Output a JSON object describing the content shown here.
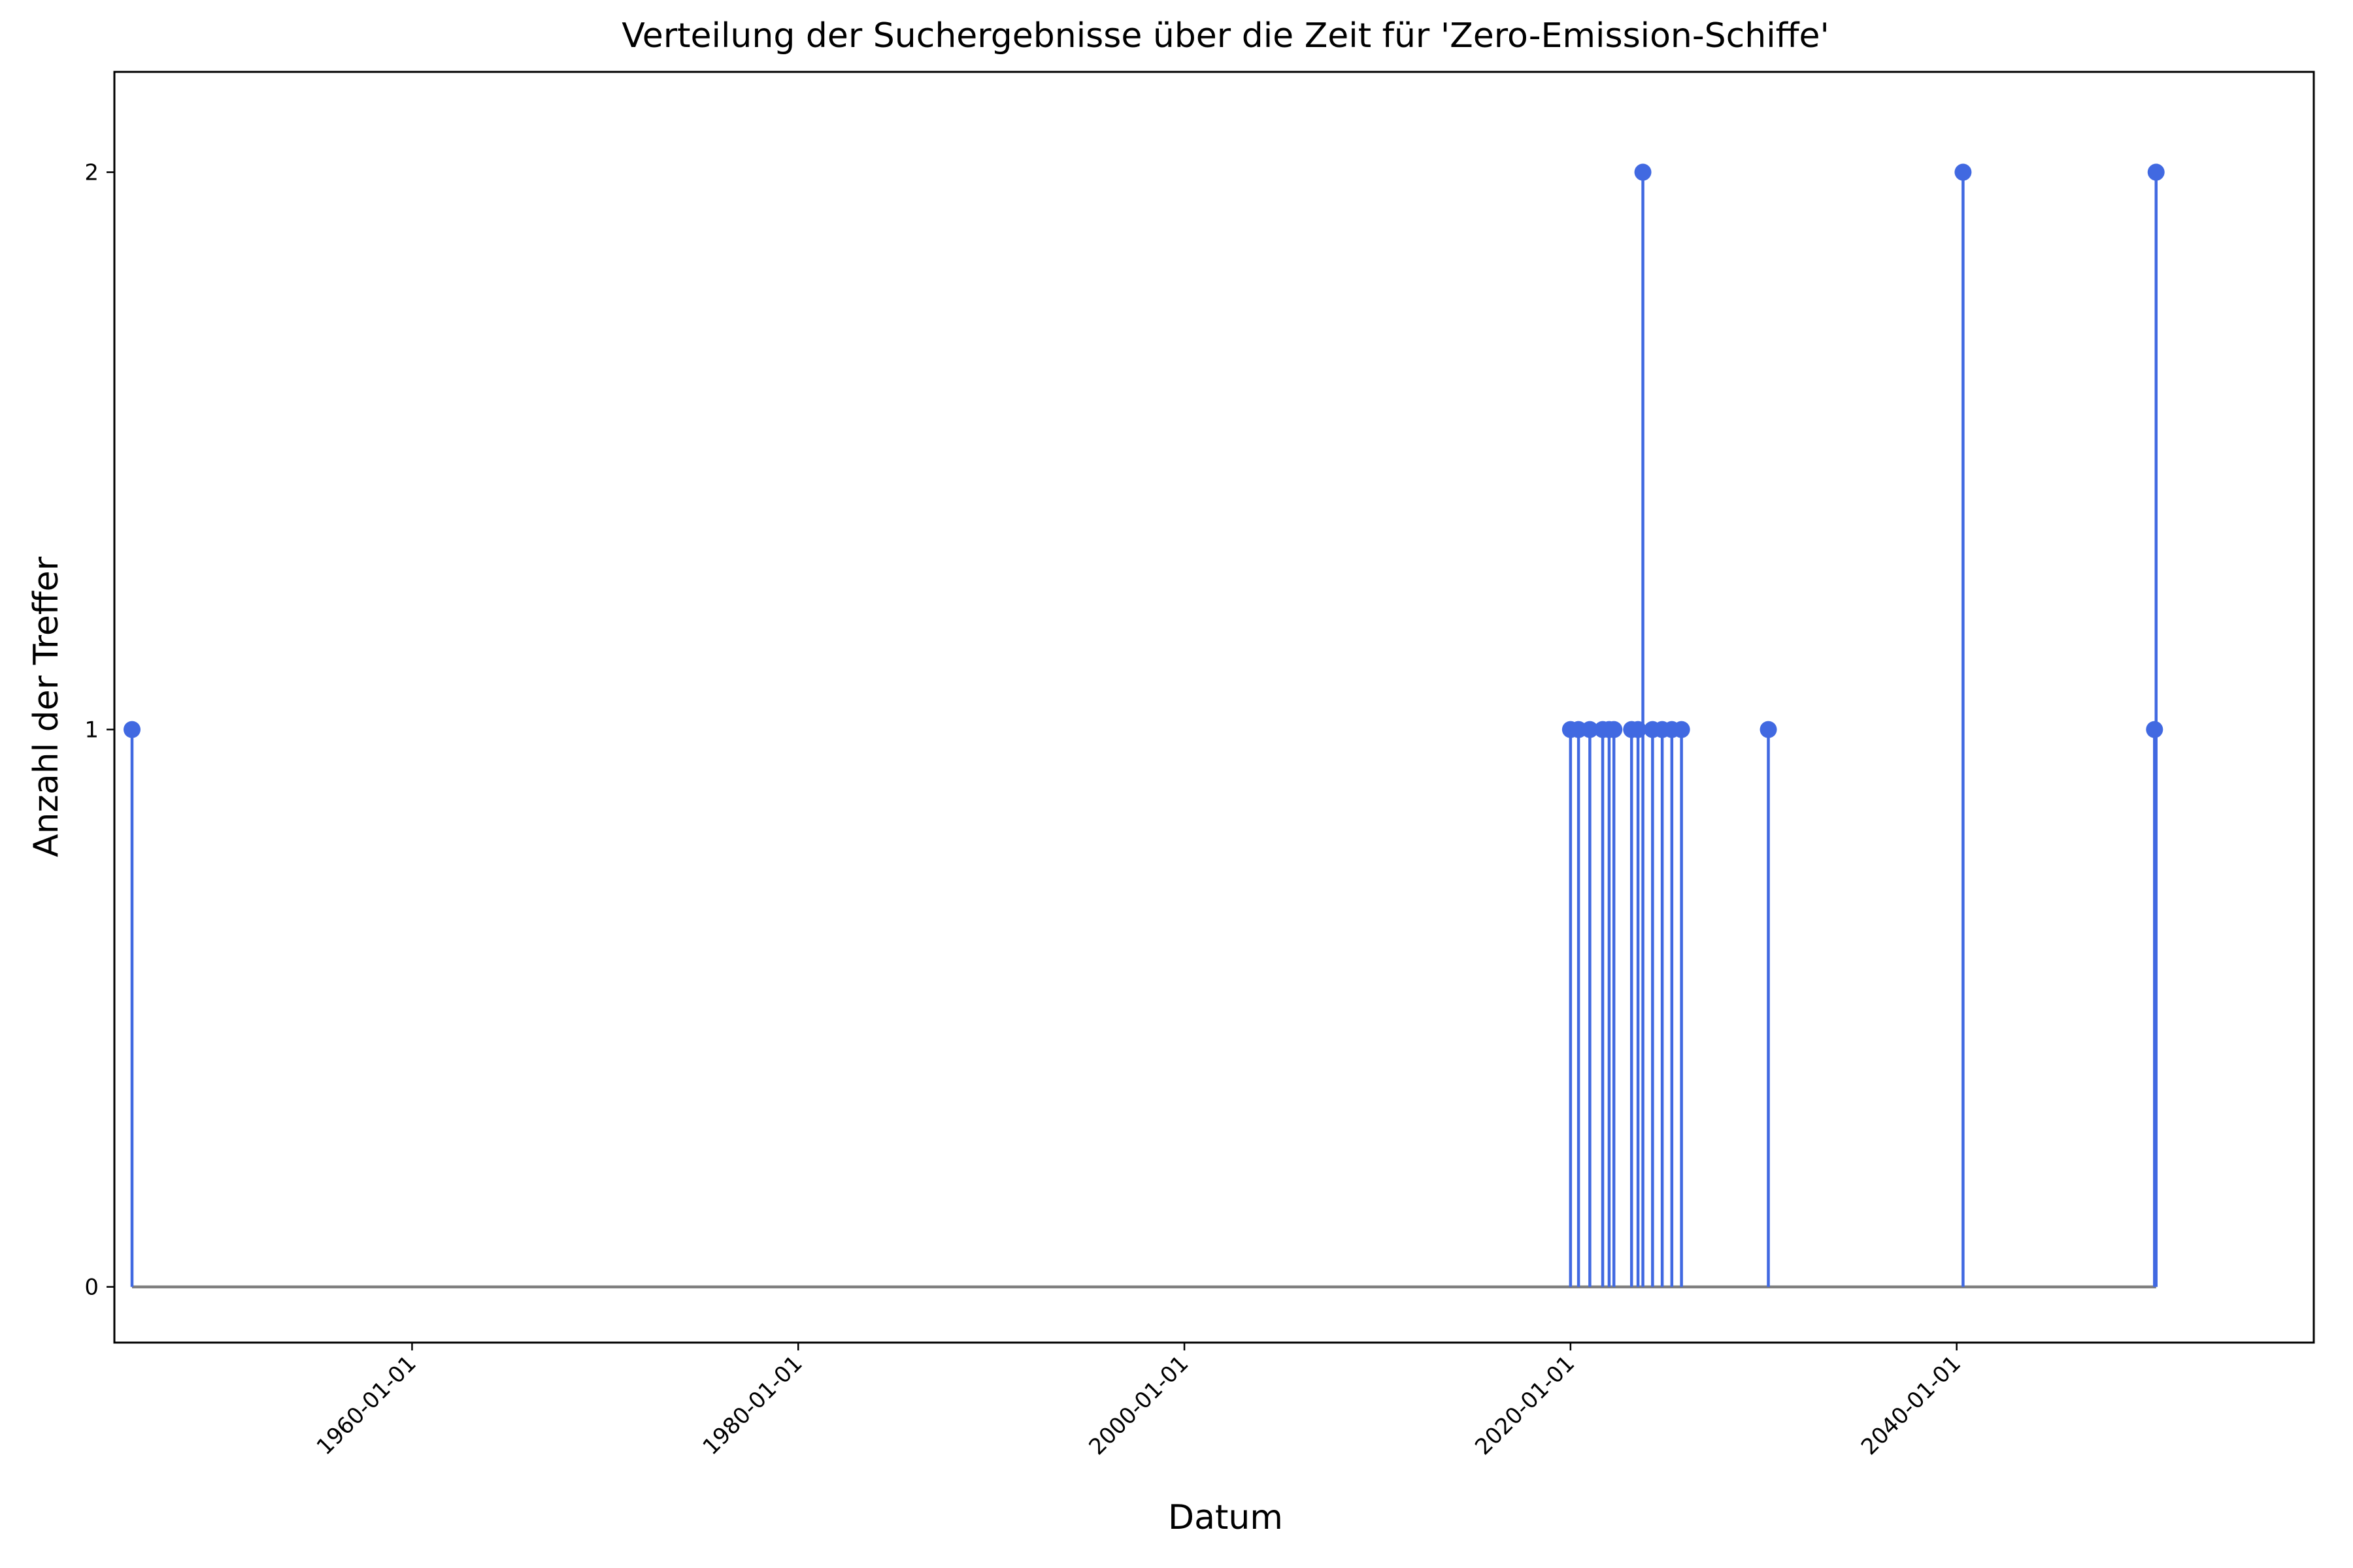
{
  "chart_data": {
    "type": "stem",
    "title": "Verteilung der Suchergebnisse über die Zeit für 'Zero-Emission-Schiffe'",
    "xlabel": "Datum",
    "ylabel": "Anzahl der Treffer",
    "x_is_date": true,
    "x_ticks": [
      "1960-01-01",
      "1980-01-01",
      "2000-01-01",
      "2020-01-01",
      "2040-01-01"
    ],
    "y_ticks": [
      0,
      1,
      2
    ],
    "xlim": [
      "1944-08-01",
      "2058-07-01"
    ],
    "ylim": [
      -0.1,
      2.18
    ],
    "baseline": 0,
    "grid": false,
    "colors": {
      "stem": "#4169e1",
      "marker": "#4169e1",
      "baseline": "#808080"
    },
    "points": [
      {
        "date": "1945-07-01",
        "value": 1
      },
      {
        "date": "2020-01-01",
        "value": 1
      },
      {
        "date": "2020-06-01",
        "value": 1
      },
      {
        "date": "2021-01-01",
        "value": 1
      },
      {
        "date": "2021-09-01",
        "value": 1
      },
      {
        "date": "2022-01-01",
        "value": 1
      },
      {
        "date": "2022-04-01",
        "value": 1
      },
      {
        "date": "2023-03-01",
        "value": 1
      },
      {
        "date": "2023-07-01",
        "value": 1
      },
      {
        "date": "2023-10-01",
        "value": 2
      },
      {
        "date": "2024-04-01",
        "value": 1
      },
      {
        "date": "2024-10-01",
        "value": 1
      },
      {
        "date": "2025-04-01",
        "value": 1
      },
      {
        "date": "2025-10-01",
        "value": 1
      },
      {
        "date": "2030-04-01",
        "value": 1
      },
      {
        "date": "2040-05-01",
        "value": 2
      },
      {
        "date": "2050-04-01",
        "value": 1
      },
      {
        "date": "2050-05-01",
        "value": 2
      }
    ]
  }
}
